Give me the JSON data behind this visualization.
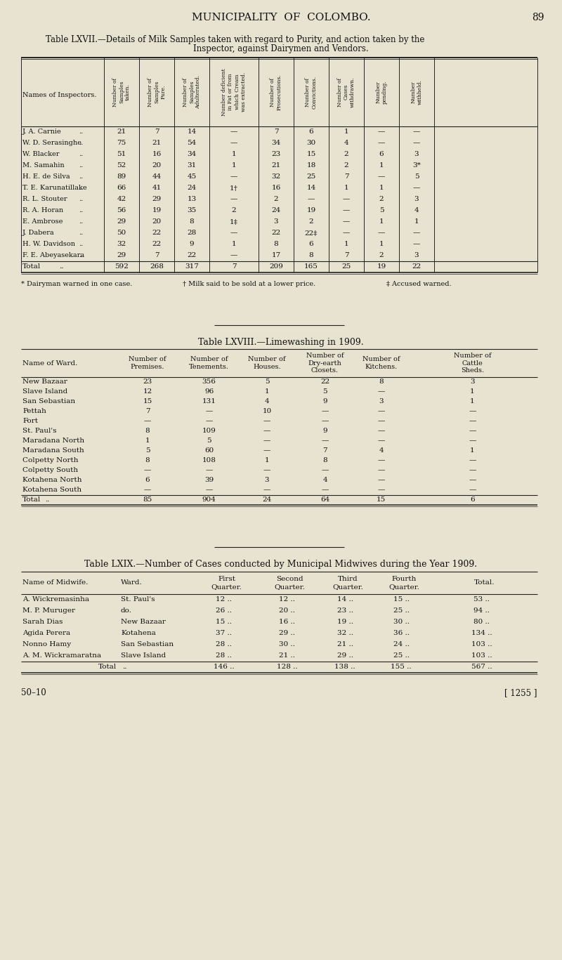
{
  "page_title": "MUNICIPALITY  OF  COLOMBO.",
  "page_number": "89",
  "bg_color": "#e8e3d0",
  "table1_title_1": "Table LXVII.—Details of Milk Samples taken with regard to Purity, and action taken by the",
  "table1_title_2": "Inspector, against Dairymen and Vendors.",
  "table1_headers": [
    "Names of Inspectors.",
    "Number of\nSamples\ntaken.",
    "Number of\nSamples\nPure.",
    "Number of\nSamples\nAdulterated.",
    "Number deficient\nin Fat or from\nwhich Cream\nwas extracted.",
    "Number of\nProsecutions.",
    "Number of\nConvictions.",
    "Number of\nCases\nwithdrawn.",
    "Number\npending.",
    "Number\nwithheld."
  ],
  "table1_rows": [
    [
      "J. A. Carnie",
      "21",
      "7",
      "14",
      "—",
      "7",
      "6",
      "1",
      "—",
      "—"
    ],
    [
      "W. D. Serasinghe",
      "75",
      "21",
      "54",
      "—",
      "34",
      "30",
      "4",
      "—",
      "—"
    ],
    [
      "W. Blacker",
      "51",
      "16",
      "34",
      "1",
      "23",
      "15",
      "2",
      "6",
      "3"
    ],
    [
      "M. Samahin",
      "52",
      "20",
      "31",
      "1",
      "21",
      "18",
      "2",
      "1",
      "3*"
    ],
    [
      "H. E. de Silva",
      "89",
      "44",
      "45",
      "—",
      "32",
      "25",
      "7",
      "—",
      "5"
    ],
    [
      "T. E. Karunatillake",
      "66",
      "41",
      "24",
      "1†",
      "16",
      "14",
      "1",
      "1",
      "—"
    ],
    [
      "R. L. Stouter",
      "42",
      "29",
      "13",
      "—",
      "2",
      "—",
      "—",
      "2",
      "3"
    ],
    [
      "R. A. Horan",
      "56",
      "19",
      "35",
      "2",
      "24",
      "19",
      "—",
      "5",
      "4"
    ],
    [
      "E. Ambrose",
      "29",
      "20",
      "8",
      "1‡",
      "3",
      "2",
      "—",
      "1",
      "1"
    ],
    [
      "J. Dabera",
      "50",
      "22",
      "28",
      "—",
      "22",
      "22‡",
      "—",
      "—",
      "—"
    ],
    [
      "H. W. Davidson",
      "32",
      "22",
      "9",
      "1",
      "8",
      "6",
      "1",
      "1",
      "—"
    ],
    [
      "F. E. Abeyasekara",
      "29",
      "7",
      "22",
      "—",
      "17",
      "8",
      "7",
      "2",
      "3"
    ]
  ],
  "table1_total": [
    "Total",
    "592",
    "268",
    "317",
    "7",
    "209",
    "165",
    "25",
    "19",
    "22"
  ],
  "table1_footnotes": [
    "* Dairyman warned in one case.",
    "† Milk said to be sold at a lower price.",
    "‡ Accused warned."
  ],
  "table2_title": "Table LXVIII.—Limewashing in 1909.",
  "table2_headers": [
    "Name of Ward.",
    "Number of\nPremises.",
    "Number of\nTenements.",
    "Number of\nHouses.",
    "Number of\nDry-earth\nClosets.",
    "Number of\nKitchens.",
    "Number of\nCattle\nSheds."
  ],
  "table2_rows": [
    [
      "New Bazaar",
      "23",
      "356",
      "5",
      "22",
      "8",
      "3"
    ],
    [
      "Slave Island",
      "12",
      "96",
      "1",
      "5",
      "—",
      "1"
    ],
    [
      "San Sebastian",
      "15",
      "131",
      "4",
      "9",
      "3",
      "1"
    ],
    [
      "Pettah",
      "7",
      "—",
      "10",
      "—",
      "—",
      "—"
    ],
    [
      "Fort",
      "—",
      "—",
      "—",
      "—",
      "—",
      "—"
    ],
    [
      "St. Paul's",
      "8",
      "109",
      "—",
      "9",
      "—",
      "—"
    ],
    [
      "Maradana North",
      "1",
      "5",
      "—",
      "—",
      "—",
      "—"
    ],
    [
      "Maradana South",
      "5",
      "60",
      "—",
      "7",
      "4",
      "1"
    ],
    [
      "Colpetty North",
      "8",
      "108",
      "1",
      "8",
      "—",
      "—"
    ],
    [
      "Colpetty South",
      "—",
      "—",
      "—",
      "—",
      "—",
      "—"
    ],
    [
      "Kotahena North",
      "6",
      "39",
      "3",
      "4",
      "—",
      "—"
    ],
    [
      "Kotahena South",
      "—",
      "—",
      "—",
      "—",
      "—",
      "—"
    ]
  ],
  "table2_total": [
    "Total",
    "85",
    "904",
    "24",
    "64",
    "15",
    "6"
  ],
  "table3_title": "Table LXIX.—Number of Cases conducted by Municipal Midwives during the Year 1909.",
  "table3_headers": [
    "Name of Midwife.",
    "Ward.",
    "First\nQuarter.",
    "Second\nQuarter.",
    "Third\nQuarter.",
    "Fourth\nQuarter.",
    "Total."
  ],
  "table3_rows": [
    [
      "A. Wickremasinha",
      "St. Paul's",
      "12",
      "12",
      "14",
      "15",
      "53"
    ],
    [
      "M. P. Muruger",
      "do.",
      "26",
      "20",
      "23",
      "25",
      "94"
    ],
    [
      "Sarah Dias",
      "New Bazaar",
      "15",
      "16",
      "19",
      "30",
      "80"
    ],
    [
      "Agida Perera",
      "Kotahena",
      "37",
      "29",
      "32",
      "36",
      "134"
    ],
    [
      "Nonno Hamy",
      "San Sebastian",
      "28",
      "30",
      "21",
      "24",
      "103"
    ],
    [
      "A. M. Wickramaratna",
      "Slave Island",
      "28",
      "21",
      "29",
      "25",
      "103"
    ]
  ],
  "table3_total": [
    "Total",
    "",
    "146",
    "128",
    "138",
    "155",
    "567"
  ],
  "footer_left": "50–10",
  "footer_right": "[ 1255 ]",
  "text_color": "#111111",
  "line_color": "#222222"
}
